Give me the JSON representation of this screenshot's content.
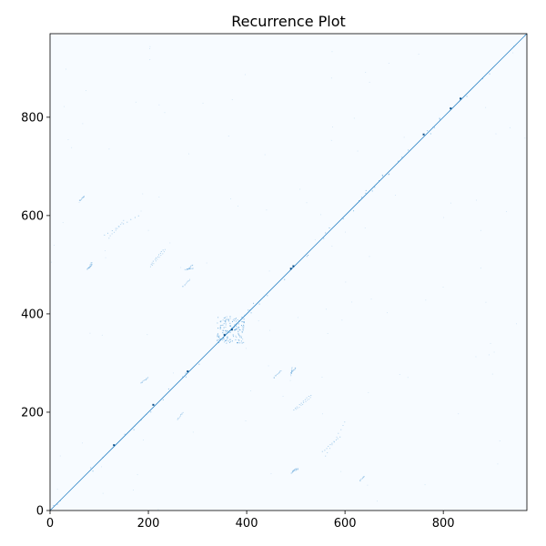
{
  "chart_data": {
    "type": "heatmap",
    "title": "Recurrence Plot",
    "xlabel": "",
    "ylabel": "",
    "xlim": [
      0,
      970
    ],
    "ylim": [
      0,
      970
    ],
    "x_ticks": [
      0,
      200,
      400,
      600,
      800
    ],
    "y_ticks": [
      0,
      200,
      400,
      600,
      800
    ],
    "colors": {
      "background": "#f7fbff",
      "diagonal": "#2f86c6",
      "points": "#3a8fd0",
      "strong_points": "#0b4f8a",
      "axes": "#000000"
    },
    "diagonal": {
      "from": 0,
      "to": 970
    },
    "cluster": {
      "x": [
        340,
        395
      ],
      "y": [
        340,
        395
      ]
    },
    "off_diagonal_segments": [
      {
        "x": [
          110,
          180
        ],
        "y": [
          560,
          600
        ]
      },
      {
        "x": [
          205,
          230
        ],
        "y": [
          500,
          530
        ]
      },
      {
        "x": [
          275,
          290
        ],
        "y": [
          490,
          493
        ]
      },
      {
        "x": [
          75,
          85
        ],
        "y": [
          490,
          500
        ]
      },
      {
        "x": [
          495,
          530
        ],
        "y": [
          205,
          235
        ]
      },
      {
        "x": [
          555,
          590
        ],
        "y": [
          120,
          150
        ]
      },
      {
        "x": [
          490,
          500
        ],
        "y": [
          280,
          290
        ]
      },
      {
        "x": [
          495,
          505
        ],
        "y": [
          80,
          85
        ]
      },
      {
        "x": [
          60,
          70
        ],
        "y": [
          630,
          640
        ]
      },
      {
        "x": [
          185,
          200
        ],
        "y": [
          260,
          270
        ]
      },
      {
        "x": [
          455,
          470
        ],
        "y": [
          270,
          285
        ]
      }
    ],
    "strong_points": [
      [
        130,
        133
      ],
      [
        210,
        215
      ],
      [
        355,
        357
      ],
      [
        370,
        368
      ],
      [
        490,
        492
      ],
      [
        760,
        765
      ],
      [
        815,
        818
      ],
      [
        835,
        838
      ],
      [
        280,
        283
      ],
      [
        495,
        497
      ]
    ]
  }
}
